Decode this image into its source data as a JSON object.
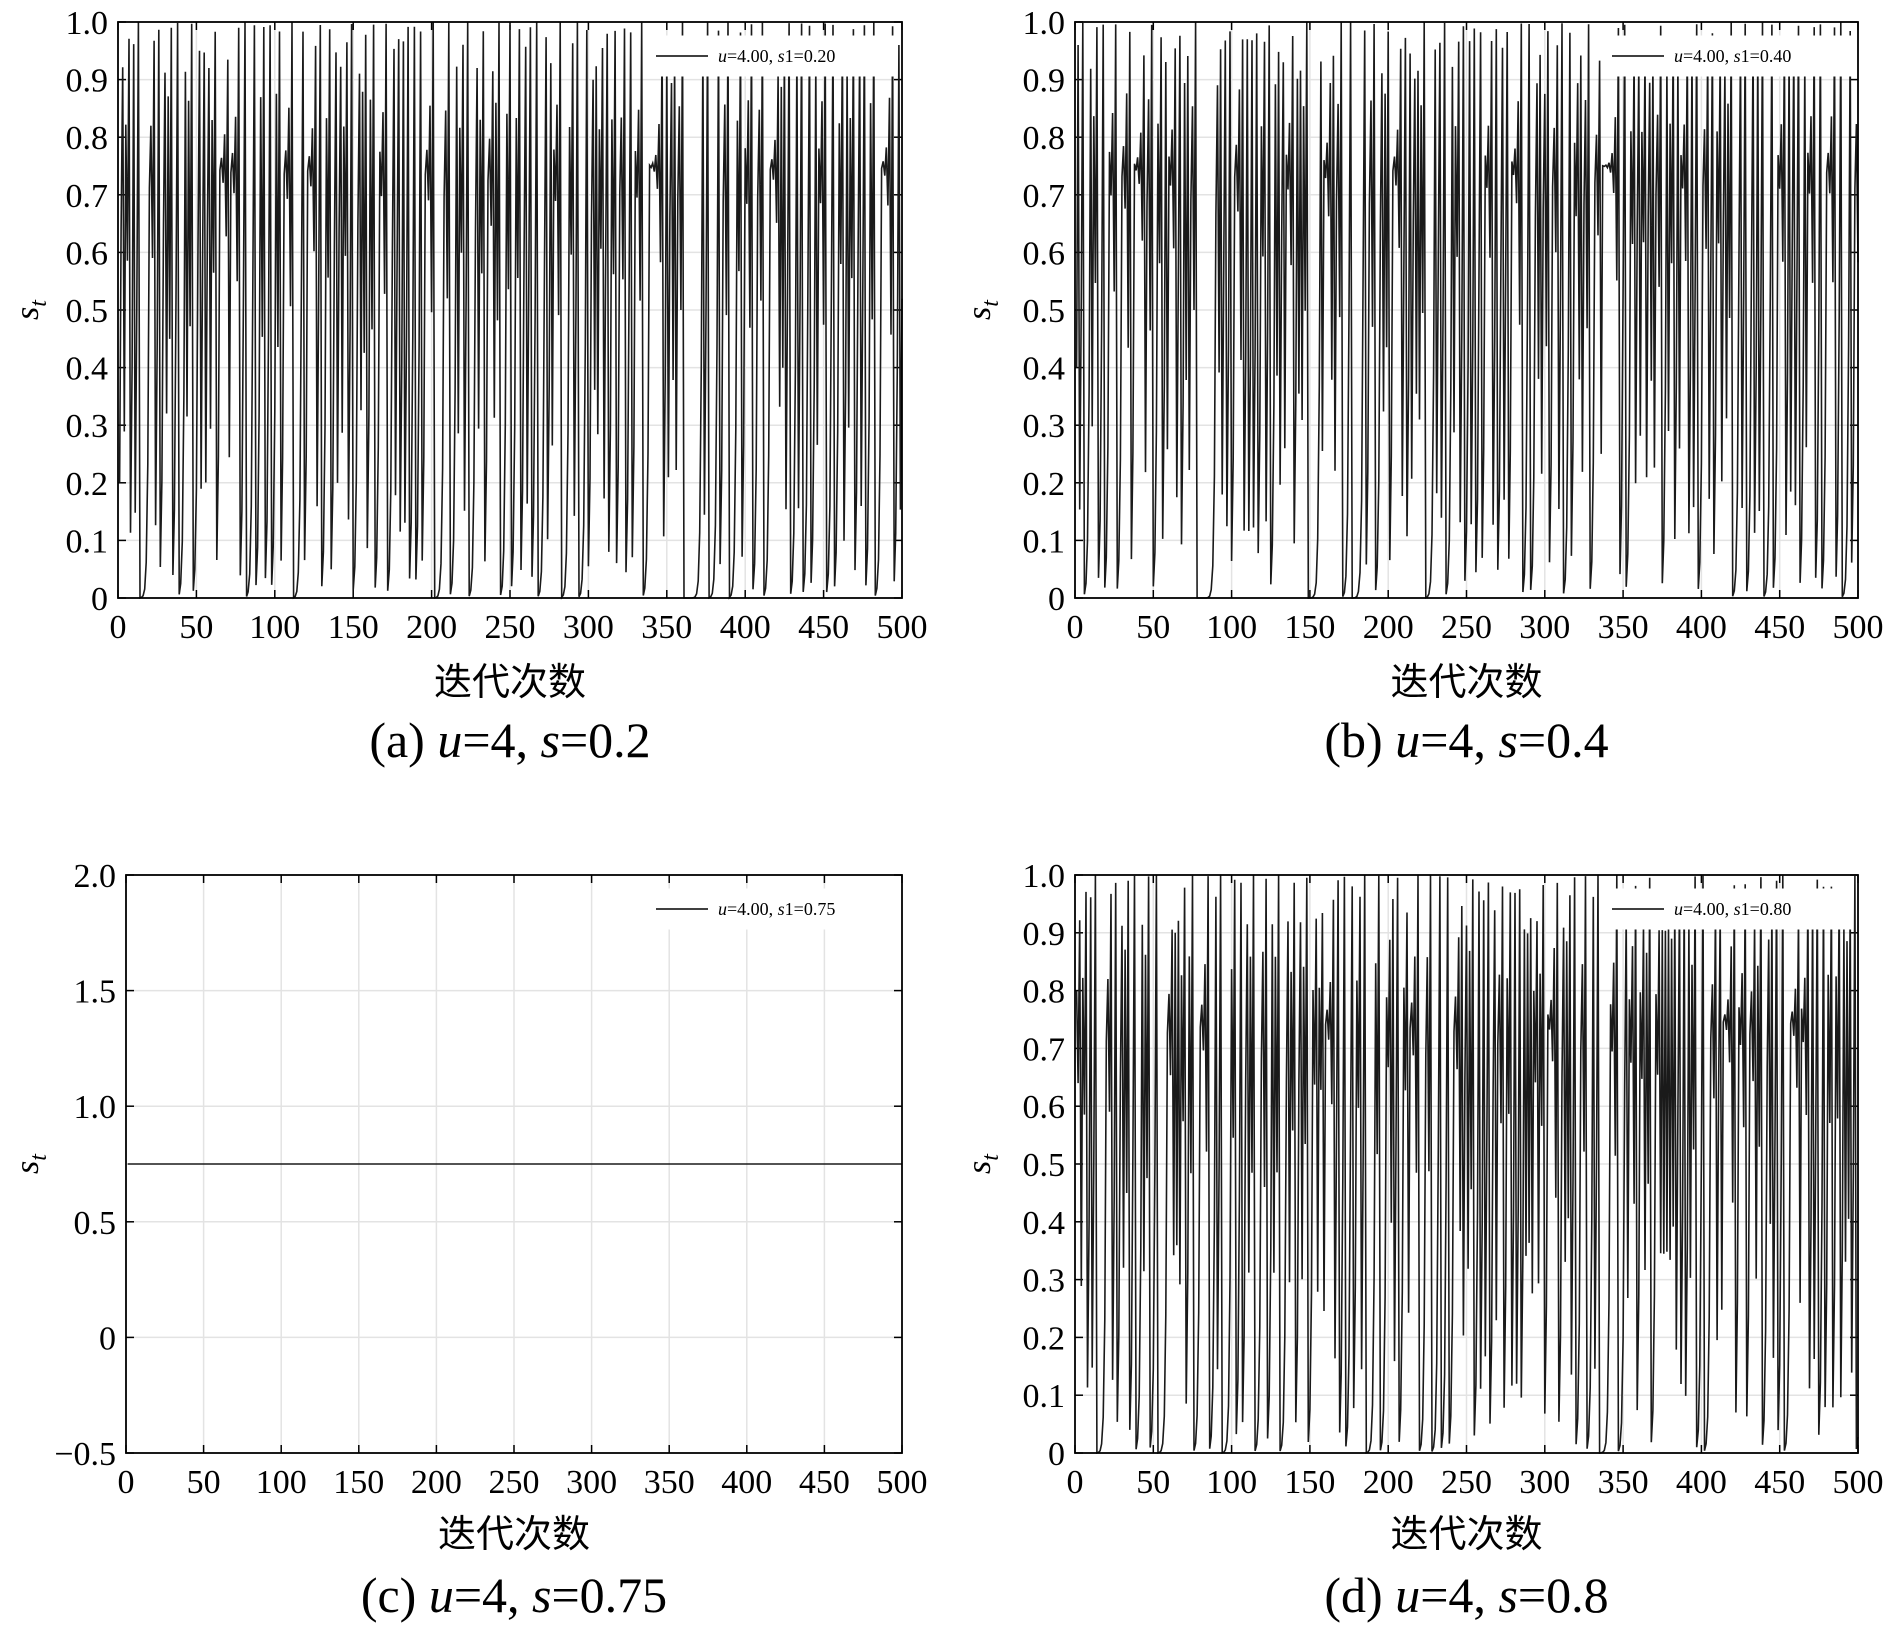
{
  "chart_data": [
    {
      "type": "line",
      "panel": "a",
      "caption": {
        "prefix": "(a) ",
        "var1": "u",
        "mid": "=4, ",
        "var2": "s",
        "suffix": "=0.2"
      },
      "xlabel": "迭代次数",
      "ylabel": {
        "base": "s",
        "sub": "t"
      },
      "xlim": [
        0,
        500
      ],
      "ylim": [
        0,
        1.0
      ],
      "xticks": [
        "0",
        "50",
        "100",
        "150",
        "200",
        "250",
        "300",
        "350",
        "400",
        "450",
        "500"
      ],
      "yticks": [
        "0",
        "0.1",
        "0.2",
        "0.3",
        "0.4",
        "0.5",
        "0.6",
        "0.7",
        "0.8",
        "0.9",
        "1.0"
      ],
      "grid": true,
      "legend_position": "top-right",
      "series": [
        {
          "name_parts": [
            "u",
            "=4.00, ",
            "s",
            "1=0.20"
          ],
          "mu": 4.0,
          "s1": 0.2,
          "n": 500
        }
      ]
    },
    {
      "type": "line",
      "panel": "b",
      "caption": {
        "prefix": "(b) ",
        "var1": "u",
        "mid": "=4, ",
        "var2": "s",
        "suffix": "=0.4"
      },
      "xlabel": "迭代次数",
      "ylabel": {
        "base": "s",
        "sub": "t"
      },
      "xlim": [
        0,
        500
      ],
      "ylim": [
        0,
        1.0
      ],
      "xticks": [
        "0",
        "50",
        "100",
        "150",
        "200",
        "250",
        "300",
        "350",
        "400",
        "450",
        "500"
      ],
      "yticks": [
        "0",
        "0.1",
        "0.2",
        "0.3",
        "0.4",
        "0.5",
        "0.6",
        "0.7",
        "0.8",
        "0.9",
        "1.0"
      ],
      "grid": true,
      "legend_position": "top-right",
      "series": [
        {
          "name_parts": [
            "u",
            "=4.00, ",
            "s",
            "1=0.40"
          ],
          "mu": 4.0,
          "s1": 0.4,
          "n": 500
        }
      ]
    },
    {
      "type": "line",
      "panel": "c",
      "caption": {
        "prefix": "(c) ",
        "var1": "u",
        "mid": "=4, ",
        "var2": "s",
        "suffix": "=0.75"
      },
      "xlabel": "迭代次数",
      "ylabel": {
        "base": "s",
        "sub": "t"
      },
      "xlim": [
        0,
        500
      ],
      "ylim": [
        -0.5,
        2.0
      ],
      "xticks": [
        "0",
        "50",
        "100",
        "150",
        "200",
        "250",
        "300",
        "350",
        "400",
        "450",
        "500"
      ],
      "yticks": [
        "−0.5",
        "0",
        "0.5",
        "1.0",
        "1.5",
        "2.0"
      ],
      "grid": true,
      "legend_position": "top-right",
      "series": [
        {
          "name_parts": [
            "u",
            "=4.00, ",
            "s",
            "1=0.75"
          ],
          "mu": 4.0,
          "s1": 0.75,
          "n": 500,
          "constant": 0.75
        }
      ]
    },
    {
      "type": "line",
      "panel": "d",
      "caption": {
        "prefix": "(d) ",
        "var1": "u",
        "mid": "=4, ",
        "var2": "s",
        "suffix": "=0.8"
      },
      "xlabel": "迭代次数",
      "ylabel": {
        "base": "s",
        "sub": "t"
      },
      "xlim": [
        0,
        500
      ],
      "ylim": [
        0,
        1.0
      ],
      "xticks": [
        "0",
        "50",
        "100",
        "150",
        "200",
        "250",
        "300",
        "350",
        "400",
        "450",
        "500"
      ],
      "yticks": [
        "0",
        "0.1",
        "0.2",
        "0.3",
        "0.4",
        "0.5",
        "0.6",
        "0.7",
        "0.8",
        "0.9",
        "1.0"
      ],
      "grid": true,
      "legend_position": "top-right",
      "series": [
        {
          "name_parts": [
            "u",
            "=4.00, ",
            "s",
            "1=0.80"
          ],
          "mu": 4.0,
          "s1": 0.8,
          "n": 500
        }
      ]
    }
  ]
}
